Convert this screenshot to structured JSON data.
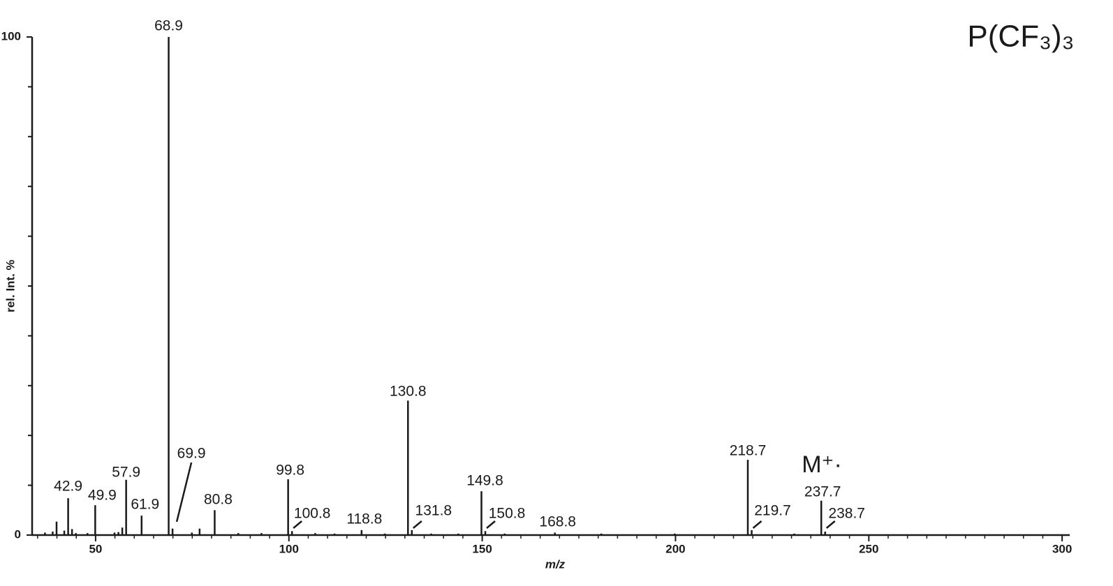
{
  "chart_data": {
    "type": "stem",
    "title": "P(CF₃)₃",
    "annotation": "M⁺·",
    "xlabel": "m/z",
    "ylabel": "rel. Int. %",
    "x": [
      42.9,
      49.9,
      57.9,
      61.9,
      68.9,
      69.9,
      80.8,
      99.8,
      100.8,
      118.8,
      130.8,
      131.8,
      149.8,
      150.8,
      168.8,
      218.7,
      219.7,
      237.7,
      238.7
    ],
    "values": [
      7.4,
      6.0,
      11.1,
      3.9,
      100,
      1.3,
      5.0,
      11.2,
      0.8,
      1.0,
      27.0,
      1.0,
      8.8,
      0.8,
      0.5,
      15.1,
      1.0,
      6.9,
      0.7
    ],
    "minor_x": [
      36.9,
      38.9,
      39.9,
      41.9,
      43.9,
      44.9,
      47.9,
      54.9,
      55.9,
      56.9,
      74.9,
      76.9,
      86.9,
      92.9,
      106.8,
      111.8,
      124.8,
      136.8,
      143.8,
      155.8,
      180.8,
      199.8,
      230.7
    ],
    "minor_values": [
      0.5,
      0.7,
      2.7,
      0.9,
      1.2,
      0.4,
      0.4,
      0.5,
      0.6,
      1.5,
      0.5,
      1.3,
      0.4,
      0.4,
      0.4,
      0.3,
      0.3,
      0.3,
      0.3,
      0.3,
      0.3,
      0.3,
      0.3
    ],
    "color": "#1a1a1a",
    "xlim": [
      33.4,
      301.6
    ],
    "ylim": [
      0,
      100
    ],
    "xticks": [
      50,
      100,
      150,
      200,
      250,
      300
    ],
    "yticks": [
      0,
      100
    ],
    "xminorticks": [
      35,
      40,
      45,
      55,
      60,
      65,
      70,
      75,
      80,
      85,
      90,
      95,
      105,
      110,
      115,
      120,
      125,
      130,
      135,
      140,
      145,
      155,
      160,
      165,
      170,
      175,
      180,
      185,
      190,
      195,
      205,
      210,
      215,
      220,
      225,
      230,
      235,
      240,
      245,
      255,
      260,
      265,
      270,
      275,
      280,
      285,
      290,
      295,
      300
    ],
    "yminorticks": [
      10,
      20,
      30,
      40,
      50,
      60,
      70,
      80,
      90
    ]
  }
}
